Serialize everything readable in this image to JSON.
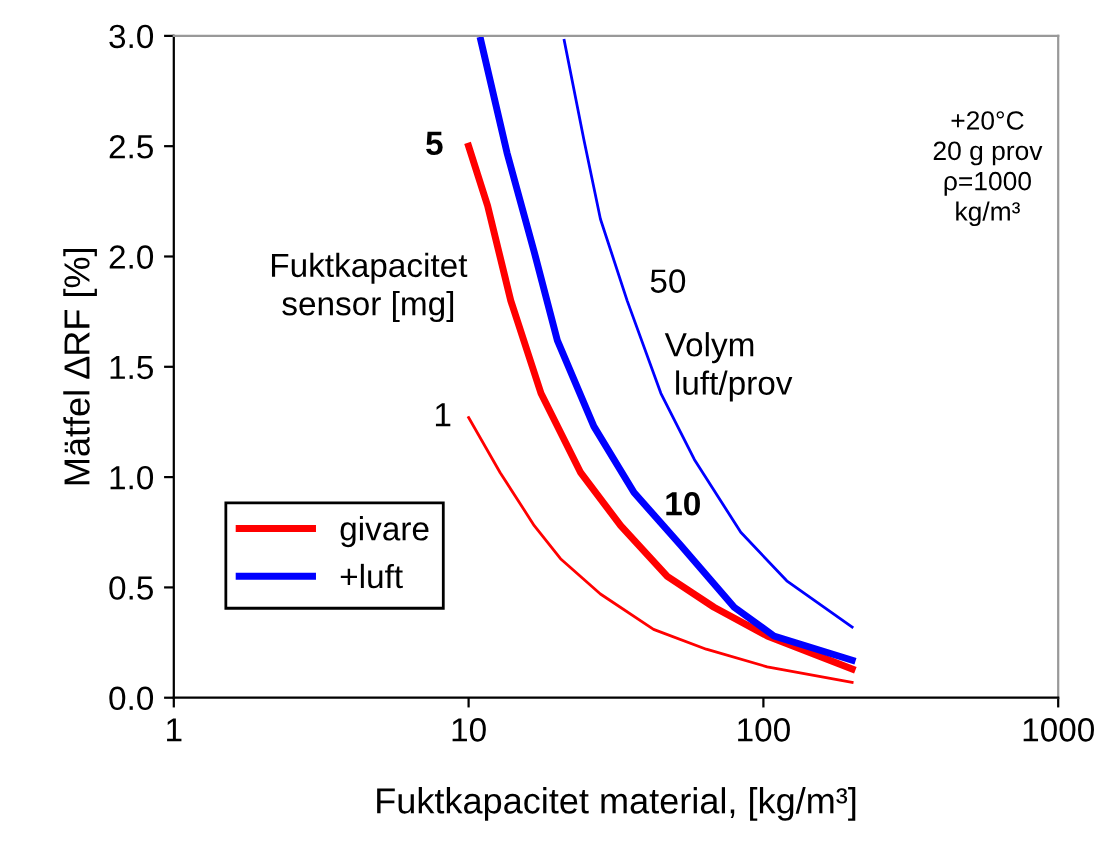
{
  "chart_data": {
    "type": "line",
    "xlabel": "Fuktkapacitet material, [kg/m³]",
    "ylabel": "Mätfel ∆RF [%]",
    "log": "x",
    "grid": false,
    "legend": "bottom left",
    "marker": "none",
    "line_style": "solid",
    "xlim": [
      1,
      1000
    ],
    "xticks": [
      1,
      10,
      100,
      1000
    ],
    "ylim": [
      0,
      3
    ],
    "yticks": [
      {
        "value": 0,
        "label": "0.0"
      },
      {
        "value": 0.5,
        "label": "0.5"
      },
      {
        "value": 1,
        "label": "1.0"
      },
      {
        "value": 1.5,
        "label": "1.5"
      },
      {
        "value": 2,
        "label": "2.0"
      },
      {
        "value": 2.5,
        "label": "2.5"
      },
      {
        "value": 3,
        "label": "3.0"
      }
    ],
    "series": [
      {
        "name": "givare",
        "color": "#ff0000",
        "x": [
          10,
          11.6,
          13.9,
          17.6,
          24,
          32.8,
          47.2,
          68,
          103,
          200
        ],
        "values": [
          2.5,
          2.23,
          1.8,
          1.38,
          1.02,
          0.78,
          0.55,
          0.41,
          0.28,
          0.13
        ]
      },
      {
        "name": "+luft",
        "color": "#0000ff",
        "x": [
          11,
          13.5,
          16.7,
          20,
          26.6,
          36.4,
          52.5,
          79.6,
          108.6,
          200
        ],
        "values": [
          2.98,
          2.47,
          2.02,
          1.62,
          1.23,
          0.93,
          0.69,
          0.41,
          0.28,
          0.17
        ]
      },
      {
        "color": "#ff0000",
        "x": [
          10,
          12.8,
          16.7,
          20.5,
          28,
          42.4,
          64,
          103,
          200
        ],
        "values": [
          1.27,
          1.02,
          0.78,
          0.63,
          0.47,
          0.31,
          0.22,
          0.14,
          0.07
        ]
      },
      {
        "color": "#0000ff",
        "x": [
          21.1,
          24.6,
          28,
          34.5,
          44.9,
          58.3,
          83.8,
          120,
          200
        ],
        "values": [
          2.98,
          2.53,
          2.17,
          1.8,
          1.38,
          1.08,
          0.75,
          0.53,
          0.32
        ]
      }
    ],
    "annotations": [
      {
        "text": "5",
        "x": 10,
        "y": 2.5
      },
      {
        "text": "1",
        "x": 10,
        "y": 1.27
      },
      {
        "text": "10",
        "x": 52.5,
        "y": 0.69
      },
      {
        "text": "50",
        "x": 34.5,
        "y": 1.8
      },
      "Fuktkapacitet\nsensor [mg]",
      "Volym\n luft/prov",
      "+20°C\n20 g prov\nρ=1000\nkg/m³"
    ]
  }
}
